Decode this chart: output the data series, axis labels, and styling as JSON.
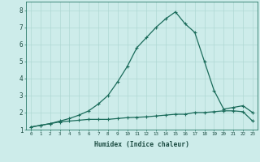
{
  "xlabel": "Humidex (Indice chaleur)",
  "background_color": "#cdecea",
  "grid_color": "#b0d8d4",
  "line_color": "#1a6b5a",
  "x_values": [
    0,
    1,
    2,
    3,
    4,
    5,
    6,
    7,
    8,
    9,
    10,
    11,
    12,
    13,
    14,
    15,
    16,
    17,
    18,
    19,
    20,
    21,
    22,
    23
  ],
  "y1_values": [
    1.15,
    1.25,
    1.35,
    1.5,
    1.65,
    1.85,
    2.1,
    2.5,
    3.0,
    3.8,
    4.7,
    5.8,
    6.4,
    7.0,
    7.5,
    7.9,
    7.2,
    6.7,
    5.0,
    3.3,
    2.2,
    2.3,
    2.4,
    2.0
  ],
  "y2_values": [
    1.15,
    1.25,
    1.35,
    1.45,
    1.5,
    1.55,
    1.6,
    1.6,
    1.6,
    1.65,
    1.7,
    1.72,
    1.75,
    1.8,
    1.85,
    1.9,
    1.9,
    2.0,
    2.0,
    2.05,
    2.1,
    2.1,
    2.05,
    1.5
  ],
  "ylim": [
    1,
    8.5
  ],
  "xlim": [
    -0.5,
    23.5
  ],
  "yticks": [
    1,
    2,
    3,
    4,
    5,
    6,
    7,
    8
  ],
  "xticks": [
    0,
    1,
    2,
    3,
    4,
    5,
    6,
    7,
    8,
    9,
    10,
    11,
    12,
    13,
    14,
    15,
    16,
    17,
    18,
    19,
    20,
    21,
    22,
    23
  ],
  "marker": "+",
  "markersize": 3.5,
  "linewidth": 0.9
}
